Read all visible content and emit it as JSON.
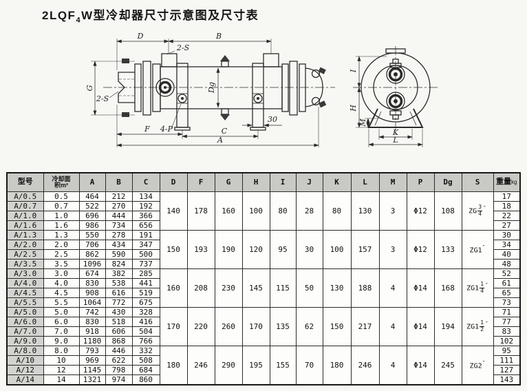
{
  "title": {
    "p1": "2LQF",
    "sub": "4",
    "p2": "W",
    "p3": "型冷却器尺寸示意图及尺寸表"
  },
  "colors": {
    "page_bg": "#f7f7f4",
    "table_header_bg": "#c9c9c5",
    "model_column_bg": "#d3d3cf",
    "line": "#2a2a2a",
    "table_border": "#161616"
  },
  "diagram": {
    "side": {
      "d": "D",
      "b": "B",
      "s2_top": "2-S",
      "s2_left": "2-S",
      "g": "G",
      "dg": "Dg",
      "offset30": "30",
      "f": "F",
      "p4": "4-P",
      "c": "C",
      "a": "A"
    },
    "end": {
      "i": "I",
      "h": "H",
      "m": "M",
      "k": "K",
      "l": "L"
    }
  },
  "table": {
    "headers": {
      "model": "型号",
      "area_line1": "冷却面",
      "area_line2": "积m²",
      "dims": [
        "A",
        "B",
        "C",
        "D",
        "F",
        "G",
        "H",
        "I",
        "J",
        "K",
        "L",
        "M",
        "P",
        "Dg",
        "S"
      ],
      "weight": "重量",
      "weight_unit": "kg"
    },
    "groups": [
      {
        "D": "140",
        "F": "178",
        "G": "160",
        "H": "100",
        "I": "80",
        "J": "28",
        "K": "80",
        "L": "130",
        "M": "3",
        "P": "Φ12",
        "Dg": "108",
        "S": {
          "pre": "ZG",
          "whole": "",
          "num": "3",
          "den": "4",
          "quote": "″"
        }
      },
      {
        "D": "150",
        "F": "193",
        "G": "190",
        "H": "120",
        "I": "95",
        "J": "30",
        "K": "100",
        "L": "157",
        "M": "3",
        "P": "Φ12",
        "Dg": "133",
        "S": {
          "pre": "ZG",
          "whole": "1",
          "num": "",
          "den": "",
          "quote": "″"
        }
      },
      {
        "D": "160",
        "F": "208",
        "G": "230",
        "H": "145",
        "I": "115",
        "J": "50",
        "K": "130",
        "L": "188",
        "M": "4",
        "P": "Φ14",
        "Dg": "168",
        "S": {
          "pre": "ZG",
          "whole": "1",
          "num": "1",
          "den": "4",
          "quote": "″"
        }
      },
      {
        "D": "170",
        "F": "220",
        "G": "260",
        "H": "170",
        "I": "135",
        "J": "62",
        "K": "150",
        "L": "217",
        "M": "4",
        "P": "Φ14",
        "Dg": "194",
        "S": {
          "pre": "ZG",
          "whole": "1",
          "num": "1",
          "den": "2",
          "quote": "″"
        }
      },
      {
        "D": "180",
        "F": "246",
        "G": "290",
        "H": "195",
        "I": "155",
        "J": "70",
        "K": "180",
        "L": "246",
        "M": "4",
        "P": "Φ14",
        "Dg": "245",
        "S": {
          "pre": "ZG",
          "whole": "2",
          "num": "",
          "den": "",
          "quote": "″"
        }
      }
    ],
    "rows": [
      {
        "model": "A/0.5",
        "area": "0.5",
        "A": "464",
        "B": "212",
        "C": "134",
        "weight": "17"
      },
      {
        "model": "A/0.7",
        "area": "0.7",
        "A": "522",
        "B": "270",
        "C": "192",
        "weight": "18"
      },
      {
        "model": "A/1.0",
        "area": "1.0",
        "A": "696",
        "B": "444",
        "C": "366",
        "weight": "22"
      },
      {
        "model": "A/1.6",
        "area": "1.6",
        "A": "986",
        "B": "734",
        "C": "656",
        "weight": "27"
      },
      {
        "model": "A/1.3",
        "area": "1.3",
        "A": "550",
        "B": "278",
        "C": "191",
        "weight": "30"
      },
      {
        "model": "A/2.0",
        "area": "2.0",
        "A": "706",
        "B": "434",
        "C": "347",
        "weight": "34"
      },
      {
        "model": "A/2.5",
        "area": "2.5",
        "A": "862",
        "B": "590",
        "C": "500",
        "weight": "40"
      },
      {
        "model": "A/3.5",
        "area": "3.5",
        "A": "1096",
        "B": "824",
        "C": "737",
        "weight": "48"
      },
      {
        "model": "A/3.0",
        "area": "3.0",
        "A": "674",
        "B": "382",
        "C": "285",
        "weight": "52"
      },
      {
        "model": "A/4.0",
        "area": "4.0",
        "A": "830",
        "B": "538",
        "C": "441",
        "weight": "61"
      },
      {
        "model": "A/4.5",
        "area": "4.5",
        "A": "908",
        "B": "616",
        "C": "519",
        "weight": "65"
      },
      {
        "model": "A/5.5",
        "area": "5.5",
        "A": "1064",
        "B": "772",
        "C": "675",
        "weight": "73"
      },
      {
        "model": "A/5.0",
        "area": "5.0",
        "A": "742",
        "B": "430",
        "C": "328",
        "weight": "71"
      },
      {
        "model": "A/6.0",
        "area": "6.0",
        "A": "830",
        "B": "518",
        "C": "416",
        "weight": "77"
      },
      {
        "model": "A/7.0",
        "area": "7.0",
        "A": "918",
        "B": "606",
        "C": "504",
        "weight": "83"
      },
      {
        "model": "A/9.0",
        "area": "9.0",
        "A": "1180",
        "B": "868",
        "C": "766",
        "weight": "102"
      },
      {
        "model": "A/8.0",
        "area": "8.0",
        "A": "793",
        "B": "446",
        "C": "332",
        "weight": "95"
      },
      {
        "model": "A/10",
        "area": "10",
        "A": "969",
        "B": "622",
        "C": "508",
        "weight": "111"
      },
      {
        "model": "A/12",
        "area": "12",
        "A": "1145",
        "B": "798",
        "C": "684",
        "weight": "127"
      },
      {
        "model": "A/14",
        "area": "14",
        "A": "1321",
        "B": "974",
        "C": "860",
        "weight": "143"
      }
    ]
  }
}
